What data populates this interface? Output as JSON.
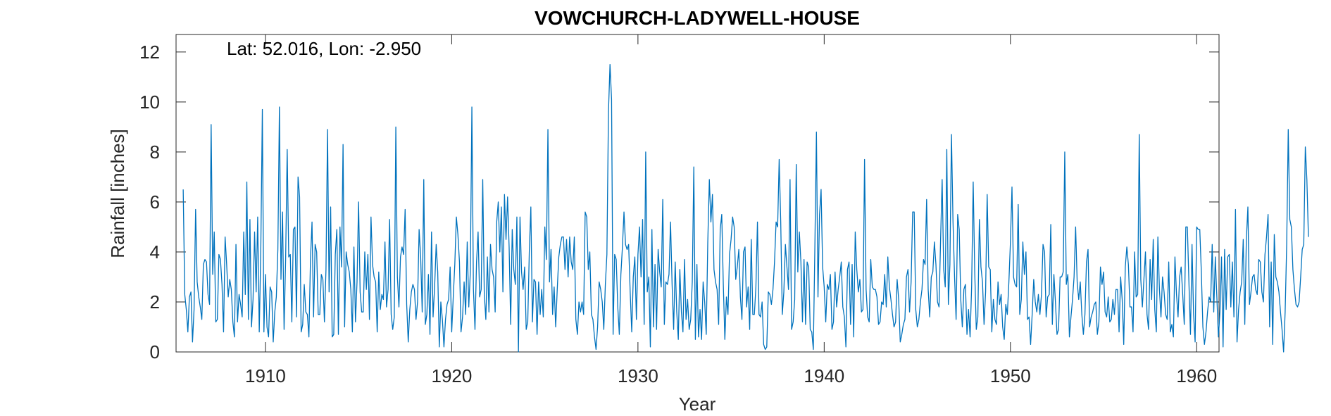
{
  "chart_data": {
    "type": "line",
    "title": "VOWCHURCH-LADYWELL-HOUSE",
    "xlabel": "Year",
    "ylabel": "Rainfall [inches]",
    "annotation": "Lat: 52.016, Lon: -2.950",
    "xlim": [
      1905.2,
      1961.2
    ],
    "ylim": [
      0,
      12.7
    ],
    "x_ticks": [
      1910,
      1920,
      1930,
      1940,
      1950,
      1960
    ],
    "y_ticks": [
      0,
      2,
      4,
      6,
      8,
      10,
      12
    ],
    "grid": false,
    "line_color": "#0072BD",
    "series": [
      {
        "x_start": "1905-08",
        "x_step": "1 month",
        "values": [
          6.5,
          2.3,
          1.7,
          0.8,
          2.2,
          2.4,
          0.4,
          1.7,
          5.7,
          2.8,
          2.2,
          1.8,
          1.3,
          3.5,
          3.7,
          3.6,
          2.3,
          1.9,
          9.1,
          3.1,
          4.8,
          1.2,
          1.3,
          3.9,
          3.7,
          2.7,
          0.8,
          4.6,
          3.5,
          2.2,
          2.9,
          2.5,
          1.2,
          0.6,
          4.3,
          1.2,
          2.3,
          1.9,
          1.4,
          4.8,
          2.3,
          6.8,
          1.3,
          5.3,
          1.0,
          2.1,
          4.8,
          2.4,
          5.4,
          0.8,
          4.1,
          9.7,
          0.8,
          3.1,
          1.0,
          0.6,
          2.6,
          2.4,
          0.4,
          1.6,
          2.2,
          4.1,
          9.8,
          2.9,
          5.6,
          0.9,
          3.7,
          8.1,
          3.8,
          3.9,
          1.2,
          4.9,
          5.0,
          1.4,
          7.0,
          6.2,
          0.8,
          1.1,
          2.7,
          1.6,
          1.5,
          0.6,
          3.7,
          5.2,
          1.4,
          4.3,
          4.0,
          1.5,
          1.5,
          3.1,
          2.9,
          1.2,
          3.3,
          8.9,
          2.4,
          5.8,
          0.6,
          0.7,
          3.9,
          4.9,
          0.7,
          5.0,
          3.4,
          8.3,
          1.0,
          4.0,
          3.5,
          3.2,
          2.5,
          0.8,
          4.2,
          1.2,
          2.8,
          6.0,
          2.4,
          1.6,
          1.6,
          4.0,
          2.5,
          3.9,
          1.3,
          5.4,
          3.5,
          3.0,
          2.8,
          0.8,
          3.2,
          1.7,
          2.3,
          2.1,
          4.4,
          1.8,
          2.5,
          5.3,
          1.5,
          0.9,
          1.4,
          9.0,
          3.0,
          1.8,
          3.8,
          4.2,
          3.9,
          5.7,
          1.9,
          0.4,
          1.7,
          2.4,
          2.7,
          2.5,
          1.3,
          2.0,
          4.9,
          3.8,
          1.6,
          6.9,
          1.1,
          1.5,
          3.1,
          0.7,
          4.8,
          1.4,
          2.6,
          4.3,
          3.2,
          0.2,
          2.0,
          1.3,
          0.2,
          1.3,
          1.9,
          2.1,
          3.4,
          0.8,
          2.2,
          3.5,
          5.4,
          4.7,
          3.6,
          0.8,
          1.4,
          2.8,
          1.5,
          4.4,
          1.8,
          3.2,
          9.8,
          2.5,
          0.9,
          3.6,
          4.8,
          2.2,
          2.5,
          6.9,
          2.3,
          1.3,
          3.8,
          1.6,
          4.3,
          3.3,
          3.0,
          1.6,
          5.2,
          6.0,
          4.0,
          5.8,
          2.4,
          6.3,
          4.5,
          6.2,
          4.2,
          1.1,
          4.9,
          3.3,
          2.7,
          5.4,
          0.0,
          5.4,
          3.2,
          2.5,
          3.4,
          0.9,
          1.2,
          4.0,
          5.8,
          1.2,
          2.9,
          2.8,
          0.7,
          2.8,
          1.5,
          2.5,
          1.4,
          5.0,
          3.7,
          8.9,
          2.8,
          4.1,
          1.5,
          2.6,
          1.0,
          2.5,
          3.8,
          4.3,
          4.6,
          4.6,
          3.3,
          4.5,
          3.0,
          4.6,
          3.6,
          3.3,
          4.6,
          1.3,
          0.7,
          2.0,
          1.6,
          2.0,
          1.5,
          5.6,
          5.4,
          3.3,
          4.0,
          1.5,
          1.3,
          0.6,
          0.1,
          1.0,
          2.8,
          2.5,
          2.0,
          0.9,
          2.7,
          3.9,
          9.6,
          11.5,
          10.1,
          0.7,
          3.9,
          3.7,
          1.8,
          0.7,
          3.1,
          4.2,
          5.6,
          4.3,
          4.1,
          4.3,
          2.4,
          0.8,
          3.0,
          3.8,
          1.3,
          3.9,
          5.0,
          3.0,
          5.3,
          1.1,
          8.0,
          2.4,
          3.0,
          0.2,
          4.9,
          1.0,
          3.5,
          0.9,
          4.1,
          3.2,
          2.6,
          6.1,
          1.1,
          2.8,
          2.7,
          3.1,
          5.2,
          2.7,
          0.9,
          3.6,
          1.6,
          0.5,
          3.3,
          1.6,
          0.8,
          3.7,
          1.3,
          2.1,
          0.9,
          1.3,
          2.8,
          7.4,
          0.5,
          3.5,
          0.6,
          1.7,
          0.5,
          2.8,
          2.0,
          0.7,
          4.4,
          6.9,
          5.2,
          6.3,
          3.3,
          2.8,
          2.5,
          1.1,
          4.9,
          5.5,
          2.7,
          0.5,
          2.2,
          1.5,
          3.9,
          4.5,
          5.4,
          5.0,
          2.9,
          3.4,
          4.1,
          2.2,
          1.3,
          4.0,
          4.2,
          1.8,
          2.6,
          0.9,
          4.5,
          1.5,
          1.5,
          2.6,
          5.2,
          1.5,
          1.4,
          2.0,
          0.3,
          0.1,
          0.2,
          2.4,
          2.3,
          1.9,
          2.5,
          3.6,
          5.2,
          5.0,
          7.7,
          5.2,
          1.5,
          2.4,
          4.3,
          3.4,
          2.5,
          6.9,
          0.9,
          1.2,
          2.1,
          7.5,
          3.2,
          4.8,
          3.6,
          1.2,
          3.7,
          1.1,
          3.6,
          3.4,
          0.9,
          0.8,
          0.1,
          4.2,
          8.8,
          2.2,
          5.5,
          6.5,
          3.4,
          2.6,
          1.2,
          2.7,
          2.5,
          3.1,
          0.9,
          1.2,
          3.2,
          1.8,
          2.5,
          3.0,
          3.6,
          1.8,
          1.4,
          0.2,
          3.3,
          3.6,
          1.1,
          3.5,
          0.6,
          4.8,
          3.3,
          2.4,
          2.9,
          1.6,
          1.7,
          7.7,
          2.5,
          1.4,
          1.2,
          3.7,
          2.6,
          2.5,
          2.5,
          2.2,
          1.1,
          1.2,
          2.0,
          1.9,
          3.1,
          1.8,
          3.8,
          2.6,
          2.1,
          1.5,
          1.0,
          1.2,
          2.9,
          2.1,
          0.4,
          0.7,
          1.1,
          1.3,
          3.0,
          3.3,
          1.6,
          2.8,
          5.6,
          5.6,
          1.7,
          1.0,
          1.3,
          2.0,
          2.5,
          3.7,
          3.5,
          6.1,
          2.5,
          1.4,
          3.0,
          3.2,
          4.4,
          3.5,
          2.0,
          1.8,
          4.5,
          6.9,
          3.3,
          2.6,
          8.1,
          1.9,
          3.5,
          8.7,
          5.2,
          3.0,
          1.3,
          5.5,
          4.9,
          2.1,
          1.0,
          2.5,
          2.7,
          0.7,
          1.7,
          0.6,
          2.6,
          6.8,
          3.2,
          0.9,
          1.4,
          5.3,
          3.4,
          2.8,
          1.1,
          2.4,
          6.3,
          3.4,
          3.3,
          0.8,
          2.1,
          1.3,
          1.1,
          2.8,
          1.9,
          2.3,
          1.0,
          0.5,
          1.9,
          1.5,
          2.8,
          4.4,
          6.6,
          3.0,
          2.7,
          2.6,
          5.9,
          1.5,
          2.1,
          4.4,
          3.1,
          4.0,
          1.3,
          1.4,
          0.3,
          1.5,
          2.9,
          2.0,
          1.6,
          2.3,
          1.5,
          2.3,
          4.3,
          4.0,
          1.4,
          2.2,
          2.3,
          5.1,
          1.1,
          3.1,
          2.0,
          0.7,
          0.9,
          3.0,
          3.0,
          3.2,
          8.0,
          2.7,
          3.1,
          0.6,
          1.4,
          2.1,
          3.0,
          5.0,
          2.8,
          2.1,
          2.8,
          1.5,
          0.7,
          1.5,
          3.6,
          4.1,
          1.0,
          1.4,
          1.6,
          1.9,
          2.0,
          0.7,
          1.2,
          3.4,
          2.7,
          3.2,
          1.6,
          1.4,
          2.2,
          1.2,
          1.3,
          2.1,
          1.5,
          2.5,
          2.5,
          0.8,
          3.0,
          2.1,
          0.3,
          3.4,
          4.2,
          3.5,
          1.8,
          1.8,
          0.8,
          4.0,
          2.2,
          2.3,
          8.7,
          2.9,
          1.8,
          2.9,
          4.0,
          1.5,
          0.9,
          3.7,
          2.1,
          4.5,
          1.7,
          0.8,
          4.6,
          2.5,
          1.4,
          3.0,
          2.4,
          1.5,
          1.3,
          3.6,
          0.8,
          1.1,
          0.6,
          3.8,
          2.3,
          1.4,
          3.0,
          3.4,
          2.3,
          1.1,
          5.0,
          5.0,
          2.8,
          0.7,
          4.3,
          1.5,
          0.4,
          5.0,
          4.9,
          4.9,
          3.2,
          1.0,
          0.3,
          0.8,
          1.6,
          2.2,
          2.0,
          4.3,
          1.6,
          3.8,
          2.2,
          0.6,
          1.6,
          3.8,
          0.2,
          4.1,
          1.7,
          3.8,
          3.9,
          1.8,
          3.6,
          1.4,
          5.7,
          0.4,
          1.7,
          2.4,
          2.8,
          4.5,
          1.1,
          4.5,
          5.8,
          1.9,
          2.4,
          3.0,
          3.1,
          2.5,
          2.3,
          3.7,
          3.6,
          2.4,
          2.0,
          3.9,
          4.6,
          5.5,
          1.0,
          3.6,
          0.3,
          4.7,
          3.0,
          2.8,
          2.4,
          1.6,
          0.9,
          0.0,
          1.6,
          4.3,
          8.9,
          5.3,
          5.0,
          3.3,
          2.5,
          1.9,
          1.8,
          2.0,
          3.0,
          4.1,
          4.3,
          8.2,
          6.9,
          4.6
        ]
      }
    ]
  }
}
